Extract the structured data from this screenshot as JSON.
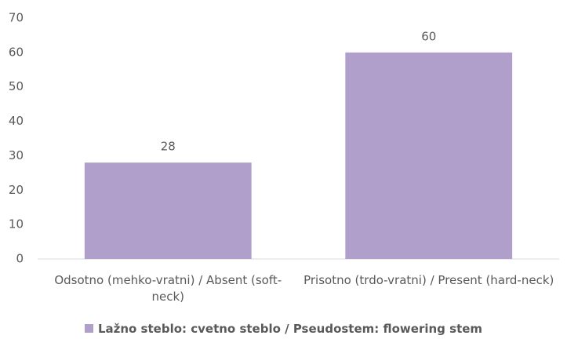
{
  "chart_data": {
    "type": "bar",
    "categories": [
      "Odsotno (mehko-vratni) / Absent (soft-neck)",
      "Prisotno (trdo-vratni) / Present (hard-neck)"
    ],
    "series": [
      {
        "name": "Lažno steblo: cvetno steblo / Pseudostem: flowering stem",
        "color": "#b09fca",
        "values": [
          28,
          60
        ]
      }
    ],
    "ylim": [
      0,
      70
    ],
    "yticks": [
      0,
      10,
      20,
      30,
      40,
      50,
      60,
      70
    ],
    "grid": false,
    "legend": "bottom"
  }
}
